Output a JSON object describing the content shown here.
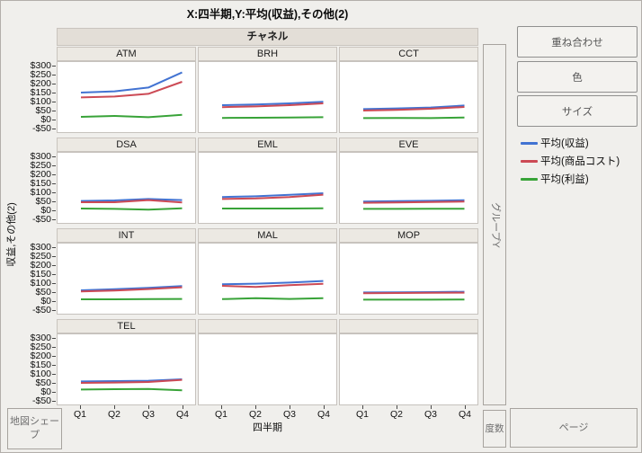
{
  "title": "X:四半期,Y:平均(収益),その他(2)",
  "axes": {
    "y_title": "収益,その他(2)",
    "x_title": "四半期",
    "y_ticks": [
      {
        "label": "$300",
        "value": 300
      },
      {
        "label": "$250",
        "value": 250
      },
      {
        "label": "$200",
        "value": 200
      },
      {
        "label": "$150",
        "value": 150
      },
      {
        "label": "$100",
        "value": 100
      },
      {
        "label": "$50",
        "value": 50
      },
      {
        "label": "$0",
        "value": 0
      },
      {
        "label": "-$50",
        "value": -50
      }
    ]
  },
  "trellis": {
    "band_label": "チャネル",
    "rows": 4,
    "cols": 3
  },
  "side_buttons": {
    "overlay": "重ね合わせ",
    "color": "色",
    "size": "サイズ"
  },
  "drop_zones": {
    "map_shape": "地図シェープ",
    "group_y": "グループY",
    "freq": "度数",
    "page": "ページ"
  },
  "chart_data": {
    "type": "line",
    "x": [
      "Q1",
      "Q2",
      "Q3",
      "Q4"
    ],
    "ylim": [
      -50,
      300
    ],
    "panel_variable": "チャネル",
    "xlabel": "四半期",
    "ylabel": "収益,その他(2)",
    "grid": false,
    "legend_position": "right",
    "series_names": [
      "平均(収益)",
      "平均(商品コスト)",
      "平均(利益)"
    ],
    "series_colors": [
      "#4273d2",
      "#cc4a55",
      "#38a338"
    ],
    "panels": [
      {
        "name": "ATM",
        "series": [
          [
            150,
            157,
            178,
            262
          ],
          [
            123,
            128,
            143,
            210
          ],
          [
            15,
            20,
            13,
            26
          ]
        ]
      },
      {
        "name": "BRH",
        "series": [
          [
            80,
            84,
            90,
            99
          ],
          [
            69,
            73,
            80,
            90
          ],
          [
            9,
            10,
            11,
            13
          ]
        ]
      },
      {
        "name": "CCT",
        "series": [
          [
            58,
            62,
            67,
            78
          ],
          [
            50,
            54,
            60,
            70
          ],
          [
            8,
            9,
            8,
            11
          ]
        ]
      },
      {
        "name": "DSA",
        "series": [
          [
            52,
            55,
            63,
            57
          ],
          [
            45,
            45,
            57,
            44
          ],
          [
            10,
            8,
            4,
            11
          ]
        ]
      },
      {
        "name": "EML",
        "series": [
          [
            74,
            78,
            86,
            95
          ],
          [
            63,
            66,
            74,
            87
          ],
          [
            10,
            10,
            10,
            11
          ]
        ]
      },
      {
        "name": "EVE",
        "series": [
          [
            49,
            51,
            53,
            56
          ],
          [
            42,
            44,
            46,
            49
          ],
          [
            8,
            8,
            9,
            9
          ]
        ]
      },
      {
        "name": "INT",
        "series": [
          [
            60,
            66,
            74,
            84
          ],
          [
            54,
            59,
            67,
            77
          ],
          [
            10,
            10,
            11,
            12
          ]
        ]
      },
      {
        "name": "MAL",
        "series": [
          [
            94,
            97,
            103,
            112
          ],
          [
            85,
            79,
            89,
            96
          ],
          [
            11,
            16,
            12,
            16
          ]
        ]
      },
      {
        "name": "MOP",
        "series": [
          [
            48,
            49,
            50,
            52
          ],
          [
            44,
            45,
            46,
            47
          ],
          [
            8,
            8,
            8,
            9
          ]
        ]
      },
      {
        "name": "TEL",
        "series": [
          [
            58,
            60,
            62,
            70
          ],
          [
            50,
            52,
            55,
            67
          ],
          [
            13,
            15,
            16,
            9
          ]
        ]
      }
    ]
  }
}
